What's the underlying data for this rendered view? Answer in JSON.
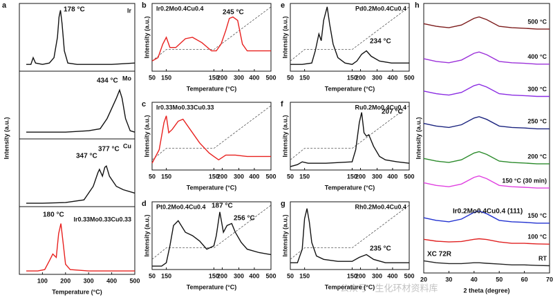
{
  "chart_data": [
    {
      "type": "line",
      "letter": "a",
      "ylabel": "Intensity (a.u.)",
      "xlim": [
        0,
        500
      ],
      "ylim": [
        0,
        1
      ],
      "x": [
        30,
        50,
        60,
        70,
        100,
        130,
        150,
        165,
        172,
        178,
        185,
        195,
        210,
        250,
        300,
        400,
        500
      ],
      "series": [
        {
          "name": "Ir",
          "color": "#111111",
          "values": [
            0.1,
            0.1,
            0.2,
            0.12,
            0.1,
            0.12,
            0.2,
            0.5,
            0.8,
            0.9,
            0.7,
            0.3,
            0.12,
            0.1,
            0.1,
            0.1,
            0.12
          ]
        }
      ],
      "annotations": [
        {
          "text": "178 °C",
          "color": "#111111"
        }
      ]
    },
    {
      "type": "line",
      "xlim": [
        0,
        500
      ],
      "ylim": [
        0,
        1
      ],
      "x": [
        30,
        100,
        200,
        300,
        350,
        380,
        400,
        420,
        434,
        445,
        460,
        480,
        500
      ],
      "series": [
        {
          "name": "Mo",
          "color": "#111111",
          "values": [
            0.1,
            0.1,
            0.1,
            0.12,
            0.15,
            0.3,
            0.45,
            0.6,
            0.72,
            0.6,
            0.3,
            0.12,
            0.1
          ]
        }
      ],
      "annotations": [
        {
          "text": "434 °C",
          "color": "#111111"
        }
      ]
    },
    {
      "type": "line",
      "xlim": [
        0,
        500
      ],
      "ylim": [
        0,
        1
      ],
      "x": [
        30,
        100,
        200,
        280,
        320,
        340,
        347,
        360,
        370,
        377,
        390,
        420,
        450,
        500
      ],
      "series": [
        {
          "name": "Cu",
          "color": "#111111",
          "values": [
            0.05,
            0.05,
            0.06,
            0.1,
            0.3,
            0.5,
            0.55,
            0.45,
            0.58,
            0.6,
            0.45,
            0.3,
            0.25,
            0.2
          ]
        }
      ],
      "annotations": [
        {
          "text": "347 °C",
          "color": "#111111"
        },
        {
          "text": "377 °C",
          "color": "#111111"
        }
      ]
    },
    {
      "type": "line",
      "xlim": [
        0,
        500
      ],
      "ylim": [
        0,
        1
      ],
      "xticks": [
        100,
        200,
        300,
        400,
        500
      ],
      "xlabel": "Temperature (°C)",
      "x": [
        30,
        80,
        110,
        130,
        145,
        160,
        170,
        180,
        190,
        200,
        220,
        300,
        400,
        500
      ],
      "series": [
        {
          "name": "Ir0.33Mo0.33Cu0.33",
          "color": "#e8201e",
          "values": [
            0.05,
            0.05,
            0.07,
            0.2,
            0.3,
            0.25,
            0.6,
            0.75,
            0.45,
            0.15,
            0.07,
            0.05,
            0.05,
            0.05
          ]
        }
      ],
      "annotations": [
        {
          "text": "180 °C",
          "color": "#e8201e"
        }
      ]
    },
    {
      "type": "line",
      "letter": "b",
      "ylabel": "Intensity (a.u.)",
      "xlabel": "Temperature (°C)",
      "dashed_profile": true,
      "xlim": [
        0,
        100
      ],
      "ylim": [
        0,
        1
      ],
      "xticks": [
        {
          "value": 0,
          "label": "50"
        },
        {
          "value": 12,
          "label": "150"
        },
        {
          "value": 52,
          "label": "150"
        },
        {
          "value": 59,
          "label": "200"
        },
        {
          "value": 73,
          "label": "300"
        },
        {
          "value": 86,
          "label": "400"
        },
        {
          "value": 100,
          "label": "500"
        }
      ],
      "x": [
        0,
        5,
        9,
        12,
        15,
        20,
        28,
        34,
        42,
        50,
        54,
        58,
        62,
        65,
        68,
        72,
        76,
        80,
        88,
        100
      ],
      "series": [
        {
          "name": "Ir0.2Mo0.4Cu0.4",
          "color": "#e8201e",
          "values": [
            0.15,
            0.2,
            0.4,
            0.5,
            0.35,
            0.35,
            0.48,
            0.5,
            0.42,
            0.3,
            0.3,
            0.4,
            0.6,
            0.78,
            0.8,
            0.75,
            0.4,
            0.3,
            0.3,
            0.3
          ]
        }
      ],
      "annotations": [
        {
          "text": "245 °C",
          "color": "#e8201e"
        }
      ]
    },
    {
      "type": "line",
      "letter": "c",
      "ylabel": "Intensity (a.u.)",
      "xlabel": "Temperature (°C)",
      "dashed_profile": true,
      "xlim": [
        0,
        100
      ],
      "ylim": [
        0,
        1
      ],
      "xticks": [
        {
          "value": 0,
          "label": "50"
        },
        {
          "value": 12,
          "label": "150"
        },
        {
          "value": 52,
          "label": "150"
        },
        {
          "value": 59,
          "label": "200"
        },
        {
          "value": 73,
          "label": "300"
        },
        {
          "value": 86,
          "label": "400"
        },
        {
          "value": 100,
          "label": "500"
        }
      ],
      "x": [
        0,
        6,
        10,
        12,
        14,
        17,
        22,
        26,
        32,
        40,
        48,
        52,
        56,
        62,
        70,
        80,
        90,
        100
      ],
      "series": [
        {
          "name": "Ir0.33Mo0.33Cu0.33",
          "color": "#e8201e",
          "values": [
            0.1,
            0.3,
            0.7,
            0.8,
            0.55,
            0.6,
            0.72,
            0.75,
            0.6,
            0.4,
            0.25,
            0.2,
            0.15,
            0.22,
            0.22,
            0.2,
            0.2,
            0.2
          ]
        }
      ],
      "annotations": []
    },
    {
      "type": "line",
      "letter": "d",
      "ylabel": "Intensity (a.u.)",
      "xlabel": "Temperature (°C)",
      "dashed_profile": true,
      "xlim": [
        0,
        100
      ],
      "ylim": [
        0,
        1
      ],
      "xticks": [
        {
          "value": 0,
          "label": "50"
        },
        {
          "value": 12,
          "label": "150"
        },
        {
          "value": 52,
          "label": "150"
        },
        {
          "value": 59,
          "label": "200"
        },
        {
          "value": 73,
          "label": "300"
        },
        {
          "value": 86,
          "label": "400"
        },
        {
          "value": 100,
          "label": "500"
        }
      ],
      "x": [
        0,
        8,
        12,
        15,
        18,
        22,
        28,
        34,
        40,
        46,
        52,
        54,
        57,
        60,
        63,
        67,
        70,
        75,
        80,
        90,
        100
      ],
      "series": [
        {
          "name": "Pt0.2Mo0.4Cu0.4",
          "color": "#111111",
          "values": [
            0.05,
            0.05,
            0.1,
            0.35,
            0.65,
            0.72,
            0.55,
            0.5,
            0.42,
            0.3,
            0.35,
            0.5,
            0.85,
            0.55,
            0.65,
            0.68,
            0.55,
            0.4,
            0.3,
            0.25,
            0.22
          ]
        }
      ],
      "annotations": [
        {
          "text": "187 °C",
          "color": "#111111"
        },
        {
          "text": "256 °C",
          "color": "#111111"
        }
      ]
    },
    {
      "type": "line",
      "letter": "e",
      "ylabel": "Intensity (a.u.)",
      "xlabel": "Temperature (°C)",
      "dashed_profile": true,
      "xlim": [
        0,
        100
      ],
      "ylim": [
        0,
        1
      ],
      "xticks": [
        {
          "value": 0,
          "label": "50"
        },
        {
          "value": 12,
          "label": "150"
        },
        {
          "value": 52,
          "label": "150"
        },
        {
          "value": 59,
          "label": "200"
        },
        {
          "value": 73,
          "label": "300"
        },
        {
          "value": 86,
          "label": "400"
        },
        {
          "value": 100,
          "label": "500"
        }
      ],
      "x": [
        0,
        10,
        18,
        21,
        24,
        26,
        28,
        31,
        33,
        36,
        40,
        46,
        52,
        56,
        60,
        64,
        68,
        75,
        85,
        100
      ],
      "series": [
        {
          "name": "Pd0.2Mo0.4Cu0.4",
          "color": "#111111",
          "values": [
            0.1,
            0.1,
            0.12,
            0.3,
            0.55,
            0.45,
            0.75,
            0.95,
            0.7,
            0.4,
            0.2,
            0.12,
            0.1,
            0.15,
            0.25,
            0.3,
            0.22,
            0.15,
            0.12,
            0.12
          ]
        }
      ],
      "annotations": [
        {
          "text": "234 °C",
          "color": "#111111"
        }
      ]
    },
    {
      "type": "line",
      "letter": "f",
      "ylabel": "Intensity (a.u.)",
      "xlabel": "Temperature (°C)",
      "dashed_profile": true,
      "xlim": [
        0,
        100
      ],
      "ylim": [
        0,
        1
      ],
      "xticks": [
        {
          "value": 0,
          "label": "50"
        },
        {
          "value": 12,
          "label": "150"
        },
        {
          "value": 52,
          "label": "150"
        },
        {
          "value": 59,
          "label": "200"
        },
        {
          "value": 73,
          "label": "300"
        },
        {
          "value": 86,
          "label": "400"
        },
        {
          "value": 100,
          "label": "500"
        }
      ],
      "x": [
        0,
        6,
        10,
        15,
        30,
        52,
        55,
        58,
        60,
        62,
        64,
        66,
        70,
        75,
        80,
        90,
        100
      ],
      "series": [
        {
          "name": "Ru0.2Mo0.4Cu0.4",
          "color": "#111111",
          "values": [
            0.05,
            0.08,
            0.12,
            0.1,
            0.1,
            0.12,
            0.3,
            0.7,
            0.85,
            0.55,
            0.5,
            0.52,
            0.35,
            0.2,
            0.15,
            0.12,
            0.1
          ]
        }
      ],
      "annotations": [
        {
          "text": "207 °C",
          "color": "#111111"
        }
      ]
    },
    {
      "type": "line",
      "letter": "g",
      "ylabel": "Intensity (a.u.)",
      "xlabel": "Temperature (°C)",
      "dashed_profile": true,
      "xlim": [
        0,
        100
      ],
      "ylim": [
        0,
        1
      ],
      "xticks": [
        {
          "value": 0,
          "label": "50"
        },
        {
          "value": 12,
          "label": "150"
        },
        {
          "value": 52,
          "label": "150"
        },
        {
          "value": 59,
          "label": "200"
        },
        {
          "value": 73,
          "label": "300"
        },
        {
          "value": 86,
          "label": "400"
        },
        {
          "value": 100,
          "label": "500"
        }
      ],
      "x": [
        0,
        6,
        10,
        12,
        14,
        16,
        18,
        22,
        28,
        40,
        52,
        58,
        64,
        70,
        80,
        100
      ],
      "series": [
        {
          "name": "Rh0.2Mo0.4Cu0.4",
          "color": "#111111",
          "values": [
            0.1,
            0.1,
            0.3,
            0.75,
            0.9,
            0.7,
            0.4,
            0.2,
            0.15,
            0.12,
            0.12,
            0.18,
            0.22,
            0.15,
            0.1,
            0.1
          ]
        }
      ],
      "annotations": [
        {
          "text": "235 °C",
          "color": "#111111"
        }
      ]
    },
    {
      "type": "line",
      "letter": "h",
      "ylabel": "Intensity (a.u.)",
      "xlabel": "2 theta (degree)",
      "xlim": [
        20,
        70
      ],
      "ylim": [
        0,
        10
      ],
      "xticks": [
        20,
        30,
        40,
        50,
        60,
        70
      ],
      "x": [
        20,
        25,
        30,
        35,
        40,
        42,
        45,
        50,
        55,
        60,
        65,
        70
      ],
      "series": [
        {
          "name": "RT",
          "color": "#222222",
          "values": [
            0.45,
            0.38,
            0.35,
            0.35,
            0.38,
            0.38,
            0.36,
            0.33,
            0.3,
            0.3,
            0.28,
            0.27
          ]
        },
        {
          "name": "100 °C",
          "color": "#e02020",
          "values": [
            1.25,
            1.18,
            1.15,
            1.17,
            1.25,
            1.27,
            1.24,
            1.15,
            1.1,
            1.1,
            1.08,
            1.07
          ]
        },
        {
          "name": "150 °C",
          "color": "#2030d0",
          "values": [
            2.05,
            1.95,
            1.9,
            2,
            2.25,
            2.3,
            2.2,
            1.95,
            1.9,
            1.88,
            1.85,
            1.85
          ]
        },
        {
          "name": "150 °C (30 min)",
          "color": "#e040e0",
          "values": [
            3.35,
            3.25,
            3.2,
            3.3,
            3.55,
            3.6,
            3.5,
            3.25,
            3.2,
            3.18,
            3.15,
            3.15
          ]
        },
        {
          "name": "200 °C",
          "color": "#2a8a2a",
          "values": [
            4.25,
            4.15,
            4.1,
            4.2,
            4.45,
            4.5,
            4.4,
            4.15,
            4.1,
            4.08,
            4.05,
            4.05
          ]
        },
        {
          "name": "250 °C",
          "color": "#1a237e",
          "values": [
            5.55,
            5.45,
            5.4,
            5.5,
            5.75,
            5.8,
            5.7,
            5.45,
            5.4,
            5.38,
            5.35,
            5.35
          ]
        },
        {
          "name": "300 °C",
          "color": "#8a2be2",
          "values": [
            6.75,
            6.65,
            6.6,
            6.7,
            6.95,
            7,
            6.9,
            6.65,
            6.6,
            6.58,
            6.55,
            6.55
          ]
        },
        {
          "name": "400 °C",
          "color": "#9b30d9",
          "values": [
            7.95,
            7.85,
            7.8,
            7.9,
            8.15,
            8.2,
            8.1,
            7.85,
            7.8,
            7.78,
            7.75,
            7.75
          ]
        },
        {
          "name": "500 °C",
          "color": "#7b1a1a",
          "values": [
            9.25,
            9.15,
            9.1,
            9.2,
            9.45,
            9.5,
            9.4,
            9.15,
            9.1,
            9.08,
            9.05,
            9.05
          ]
        }
      ],
      "annotations": [
        {
          "text": "Ir0.2Mo0.4Cu0.4 (111)",
          "color": "#2030d0"
        },
        {
          "text": "XC 72R",
          "color": "#111111"
        }
      ]
    }
  ],
  "watermark": "公众号 · 生化环材资料库"
}
